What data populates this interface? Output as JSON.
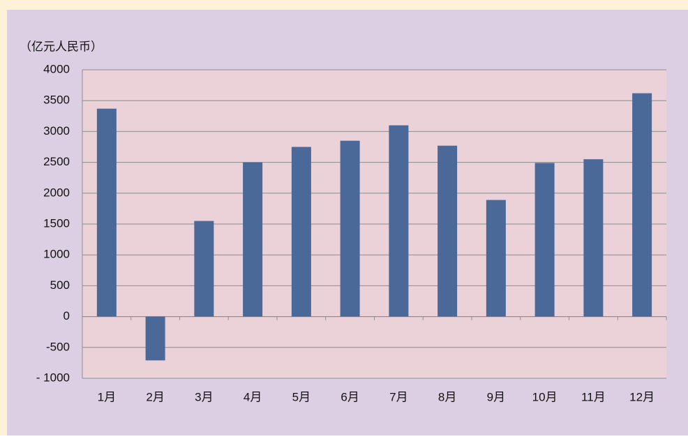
{
  "chart_data": {
    "type": "bar",
    "unit_label": "（亿元人民币）",
    "categories": [
      "1月",
      "2月",
      "3月",
      "4月",
      "5月",
      "6月",
      "7月",
      "8月",
      "9月",
      "10月",
      "11月",
      "12月"
    ],
    "values": [
      3370,
      -710,
      1550,
      2500,
      2750,
      2850,
      3100,
      2770,
      1890,
      2490,
      2550,
      3620
    ],
    "color": "#4a6898",
    "ylim": [
      -1000,
      4000
    ],
    "yticks": [
      {
        "value": -1000,
        "label": "- 1000"
      },
      -500,
      0,
      500,
      1000,
      1500,
      2000,
      2500,
      3000,
      3500,
      4000
    ],
    "grid": true
  }
}
